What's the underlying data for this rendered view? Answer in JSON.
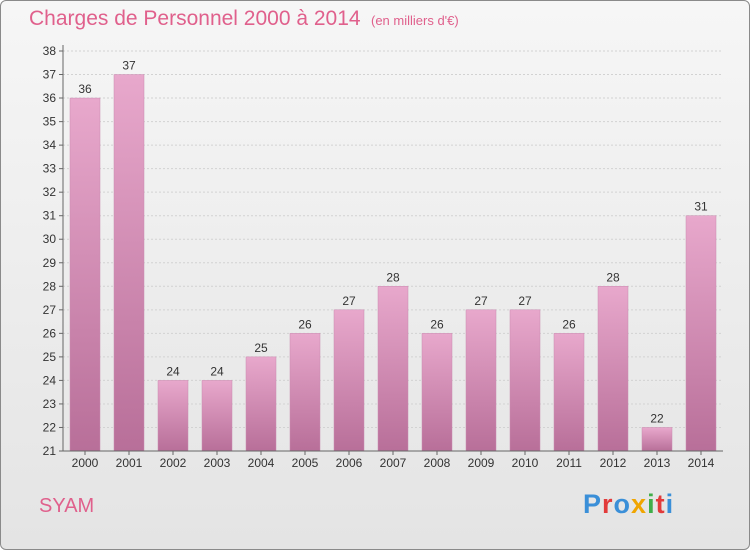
{
  "title": "Charges de Personnel 2000 à 2014",
  "subtitle": "(en milliers d'€)",
  "commune": "SYAM",
  "logo": {
    "text": "Proxiti",
    "colors": [
      "#3a8fd8",
      "#e23b3b",
      "#3a8fd8",
      "#f0a500",
      "#3fae49",
      "#e23b3b",
      "#3a8fd8"
    ]
  },
  "chart_data": {
    "type": "bar",
    "categories": [
      "2000",
      "2001",
      "2002",
      "2003",
      "2004",
      "2005",
      "2006",
      "2007",
      "2008",
      "2009",
      "2010",
      "2011",
      "2012",
      "2013",
      "2014"
    ],
    "values": [
      36,
      37,
      24,
      24,
      25,
      26,
      27,
      28,
      26,
      27,
      27,
      26,
      28,
      22,
      31
    ],
    "ylim": [
      21,
      38
    ],
    "yticks": [
      21,
      22,
      23,
      24,
      25,
      26,
      27,
      28,
      29,
      30,
      31,
      32,
      33,
      34,
      35,
      36,
      37,
      38
    ],
    "grid": true,
    "colors": {
      "bar_top": "#e8a8cc",
      "bar_bottom": "#b86f99",
      "axis": "#666666",
      "grid": "#d2d2d2"
    }
  }
}
